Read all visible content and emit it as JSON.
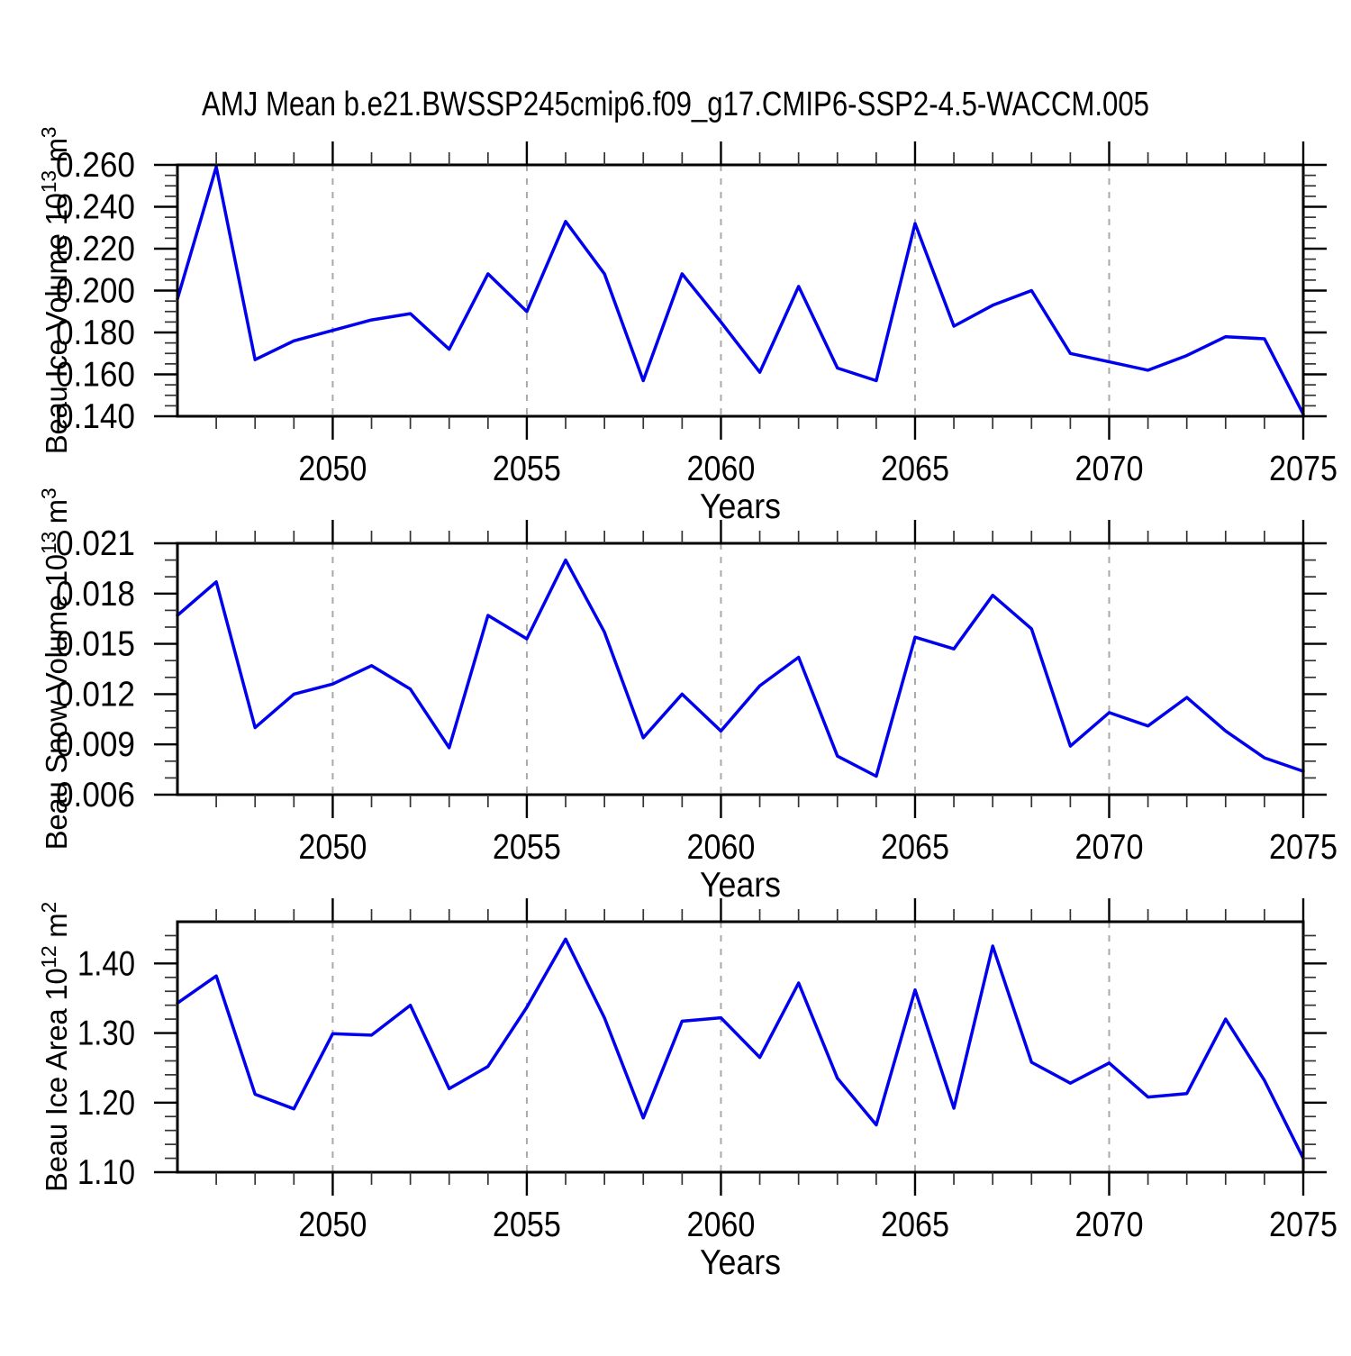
{
  "figure": {
    "title": "AMJ Mean b.e21.BWSSP245cmip6.f09_g17.CMIP6-SSP2-4.5-WACCM.005",
    "background": "#ffffff",
    "line_color": "#0000ee",
    "frame_color": "#000000",
    "grid_color": "#a9a9a9"
  },
  "years": [
    2046,
    2047,
    2048,
    2049,
    2050,
    2051,
    2052,
    2053,
    2054,
    2055,
    2056,
    2057,
    2058,
    2059,
    2060,
    2061,
    2062,
    2063,
    2064,
    2065,
    2066,
    2067,
    2068,
    2069,
    2070,
    2071,
    2072,
    2073,
    2074,
    2075
  ],
  "x_axis": {
    "label": "Years",
    "min": 2046,
    "max": 2075,
    "major_ticks": [
      2050,
      2055,
      2060,
      2065,
      2070,
      2075
    ],
    "tick_labels": [
      "2050",
      "2055",
      "2060",
      "2065",
      "2070",
      "2075"
    ],
    "minor_step": 1,
    "gridlines": [
      2050,
      2055,
      2060,
      2065,
      2070
    ],
    "grid_style": "dashed"
  },
  "chart_data": [
    {
      "type": "line",
      "id": "beau-ice-volume",
      "ylabel_parts": [
        {
          "t": "Beau Ice Volume 10"
        },
        {
          "t": "13",
          "sup": true
        },
        {
          "t": " m"
        },
        {
          "t": "3",
          "sup": true
        }
      ],
      "xlabel": "Years",
      "ylim": [
        0.14,
        0.26
      ],
      "y_major_ticks": [
        0.14,
        0.16,
        0.18,
        0.2,
        0.22,
        0.24,
        0.26
      ],
      "y_tick_labels": [
        "0.140",
        "0.160",
        "0.180",
        "0.200",
        "0.220",
        "0.240",
        "0.260"
      ],
      "y_minor_ticks": [
        0.145,
        0.15,
        0.155,
        0.165,
        0.17,
        0.175,
        0.185,
        0.19,
        0.195,
        0.205,
        0.21,
        0.215,
        0.225,
        0.23,
        0.235,
        0.245,
        0.25,
        0.255
      ],
      "values": [
        0.196,
        0.259,
        0.167,
        0.176,
        0.181,
        0.186,
        0.189,
        0.172,
        0.208,
        0.19,
        0.233,
        0.208,
        0.157,
        0.208,
        0.185,
        0.161,
        0.202,
        0.163,
        0.157,
        0.232,
        0.183,
        0.193,
        0.2,
        0.17,
        0.166,
        0.162,
        0.169,
        0.178,
        0.177,
        0.141
      ]
    },
    {
      "type": "line",
      "id": "beau-snow-volume",
      "ylabel_parts": [
        {
          "t": "Beau Snow Volume 10"
        },
        {
          "t": "13",
          "sup": true
        },
        {
          "t": " m"
        },
        {
          "t": "3",
          "sup": true
        }
      ],
      "xlabel": "Years",
      "ylim": [
        0.006,
        0.021
      ],
      "y_major_ticks": [
        0.006,
        0.009,
        0.012,
        0.015,
        0.018,
        0.021
      ],
      "y_tick_labels": [
        "0.006",
        "0.009",
        "0.012",
        "0.015",
        "0.018",
        "0.021"
      ],
      "y_minor_ticks": [
        0.007,
        0.008,
        0.01,
        0.011,
        0.013,
        0.014,
        0.016,
        0.017,
        0.019,
        0.02
      ],
      "values": [
        0.0167,
        0.0187,
        0.01,
        0.012,
        0.0126,
        0.0137,
        0.0123,
        0.0088,
        0.0167,
        0.0153,
        0.02,
        0.0157,
        0.0094,
        0.012,
        0.0098,
        0.0125,
        0.0142,
        0.0083,
        0.0071,
        0.0154,
        0.0147,
        0.0179,
        0.0159,
        0.0089,
        0.0109,
        0.0101,
        0.0118,
        0.0098,
        0.0082,
        0.0074
      ]
    },
    {
      "type": "line",
      "id": "beau-ice-area",
      "ylabel_parts": [
        {
          "t": "Beau Ice Area 10"
        },
        {
          "t": "12",
          "sup": true
        },
        {
          "t": " m"
        },
        {
          "t": "2",
          "sup": true
        }
      ],
      "xlabel": "Years",
      "ylim": [
        1.1,
        1.46
      ],
      "y_major_ticks": [
        1.1,
        1.2,
        1.3,
        1.4
      ],
      "y_tick_labels": [
        "1.10",
        "1.20",
        "1.30",
        "1.40"
      ],
      "y_minor_ticks": [
        1.12,
        1.14,
        1.16,
        1.18,
        1.22,
        1.24,
        1.26,
        1.28,
        1.32,
        1.34,
        1.36,
        1.38,
        1.42,
        1.44
      ],
      "values": [
        1.343,
        1.382,
        1.212,
        1.191,
        1.299,
        1.297,
        1.34,
        1.22,
        1.252,
        1.337,
        1.435,
        1.322,
        1.178,
        1.317,
        1.322,
        1.265,
        1.372,
        1.235,
        1.168,
        1.362,
        1.192,
        1.425,
        1.258,
        1.228,
        1.257,
        1.208,
        1.213,
        1.32,
        1.232,
        1.12
      ]
    }
  ]
}
